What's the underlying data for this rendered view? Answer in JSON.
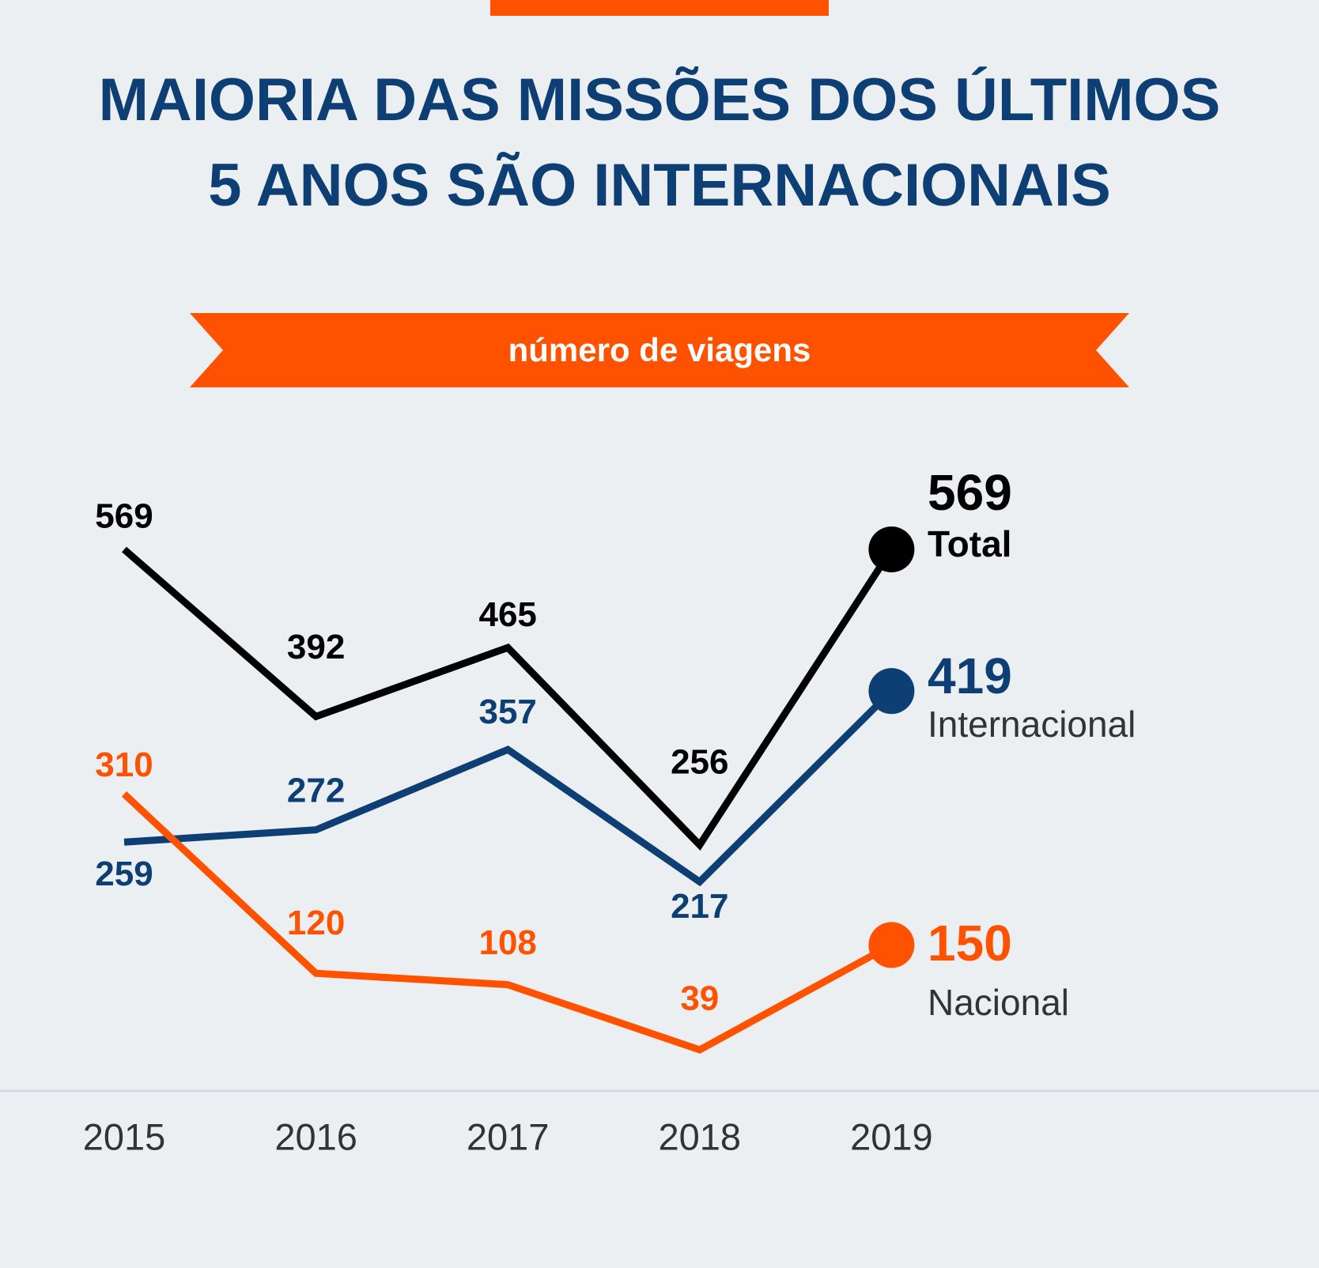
{
  "chart_data": {
    "type": "line",
    "title": [
      "MAIORIA DAS MISSÕES DOS ÚLTIMOS",
      "5 ANOS SÃO INTERNACIONAIS"
    ],
    "subtitle": "número de viagens",
    "categories": [
      "2015",
      "2016",
      "2017",
      "2018",
      "2019"
    ],
    "series": [
      {
        "name": "Total",
        "color": "#000000",
        "values": [
          569,
          392,
          465,
          256,
          569
        ]
      },
      {
        "name": "Internacional",
        "color": "#0d3f74",
        "values": [
          259,
          272,
          357,
          217,
          419
        ]
      },
      {
        "name": "Nacional",
        "color": "#ff5200",
        "values": [
          310,
          120,
          108,
          39,
          150
        ]
      }
    ]
  }
}
